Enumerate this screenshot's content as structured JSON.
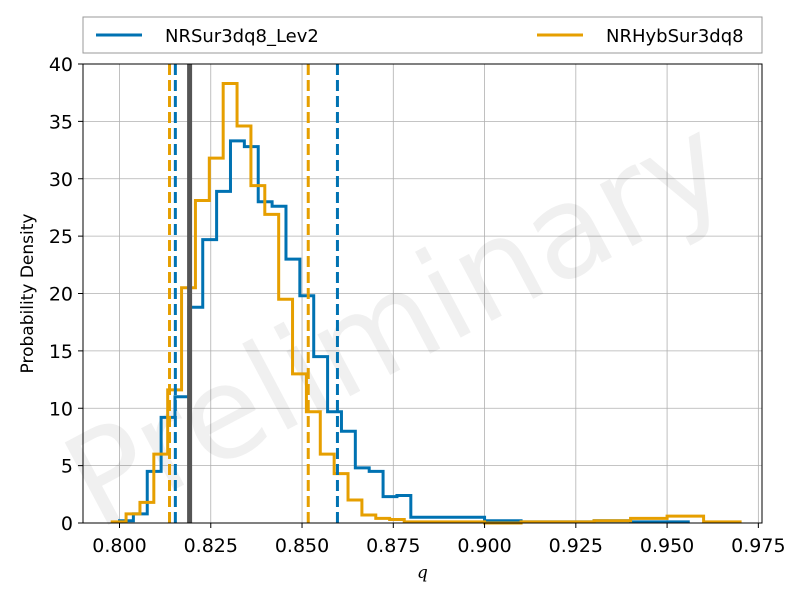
{
  "chart_data": {
    "type": "step-histogram",
    "xlabel": "q",
    "ylabel": "Probability Density",
    "watermark": "Preliminary",
    "xlim": [
      0.79,
      0.976
    ],
    "ylim": [
      0,
      40
    ],
    "xticks": [
      0.8,
      0.825,
      0.85,
      0.875,
      0.9,
      0.925,
      0.95,
      0.975
    ],
    "xtick_labels": [
      "0.800",
      "0.825",
      "0.850",
      "0.875",
      "0.900",
      "0.925",
      "0.950",
      "0.975"
    ],
    "yticks": [
      0,
      5,
      10,
      15,
      20,
      25,
      30,
      35,
      40
    ],
    "ytick_labels": [
      "0",
      "5",
      "10",
      "15",
      "20",
      "25",
      "30",
      "35",
      "40"
    ],
    "grid": true,
    "legend_position": "top",
    "series": [
      {
        "name": "NRSur3dq8_Lev2",
        "color": "#0072b2",
        "bin_edges": [
          0.8,
          0.8038,
          0.8076,
          0.8114,
          0.8152,
          0.819,
          0.8228,
          0.8266,
          0.8304,
          0.8342,
          0.838,
          0.8418,
          0.8456,
          0.8494,
          0.8532,
          0.857,
          0.8608,
          0.8646,
          0.8684,
          0.8722,
          0.876,
          0.8798,
          0.9,
          0.91,
          0.92,
          0.93,
          0.94,
          0.9558
        ],
        "densities": [
          0.2,
          0.8,
          4.5,
          9.2,
          11.0,
          18.8,
          24.7,
          28.9,
          33.3,
          32.8,
          28.0,
          27.6,
          23.0,
          19.8,
          14.5,
          9.7,
          8.0,
          4.8,
          4.5,
          2.3,
          2.4,
          0.5,
          0.2,
          0.1,
          0.1,
          0.2,
          0.1
        ],
        "credible_interval": [
          0.8153,
          0.8597
        ]
      },
      {
        "name": "NRHybSur3dq8",
        "color": "#e69f00",
        "bin_edges": [
          0.798,
          0.8018,
          0.8056,
          0.8094,
          0.8132,
          0.817,
          0.8208,
          0.8246,
          0.8284,
          0.8322,
          0.836,
          0.8398,
          0.8436,
          0.8474,
          0.8512,
          0.855,
          0.8588,
          0.8626,
          0.8664,
          0.8702,
          0.874,
          0.878,
          0.9,
          0.91,
          0.92,
          0.93,
          0.94,
          0.95,
          0.96,
          0.97
        ],
        "densities": [
          0.1,
          0.8,
          1.8,
          6.0,
          11.6,
          20.5,
          28.1,
          31.8,
          38.3,
          34.6,
          29.4,
          26.9,
          19.5,
          13.0,
          9.7,
          6.0,
          4.3,
          2.0,
          0.7,
          0.4,
          0.3,
          0.1,
          0.0,
          0.1,
          0.1,
          0.2,
          0.4,
          0.6,
          0.1
        ],
        "credible_interval": [
          0.8137,
          0.8517
        ]
      }
    ],
    "reference_line": {
      "x": 0.8192,
      "color": "#555555"
    }
  }
}
